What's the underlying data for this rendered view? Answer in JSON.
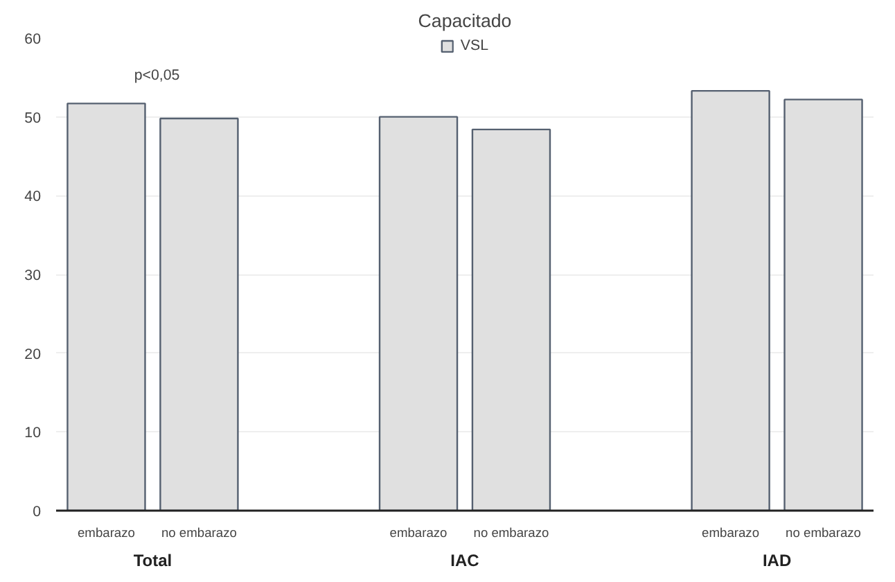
{
  "chart_data": {
    "type": "bar",
    "title": "Capacitado",
    "categories": [
      "embarazo",
      "no embarazo",
      "embarazo",
      "no embarazo",
      "embarazo",
      "no embarazo"
    ],
    "series": [
      {
        "name": "VSL",
        "color": "#e0e0e0",
        "values": [
          51.7,
          49.8,
          50.0,
          48.4,
          53.3,
          52.2
        ]
      }
    ],
    "ylim": [
      0,
      60
    ],
    "yticks": [
      0,
      10,
      20,
      30,
      40,
      50,
      60
    ],
    "grid": "y",
    "legend": "top",
    "annotations": [
      "Total",
      "IAC",
      "IAD",
      "p<0,05"
    ]
  }
}
